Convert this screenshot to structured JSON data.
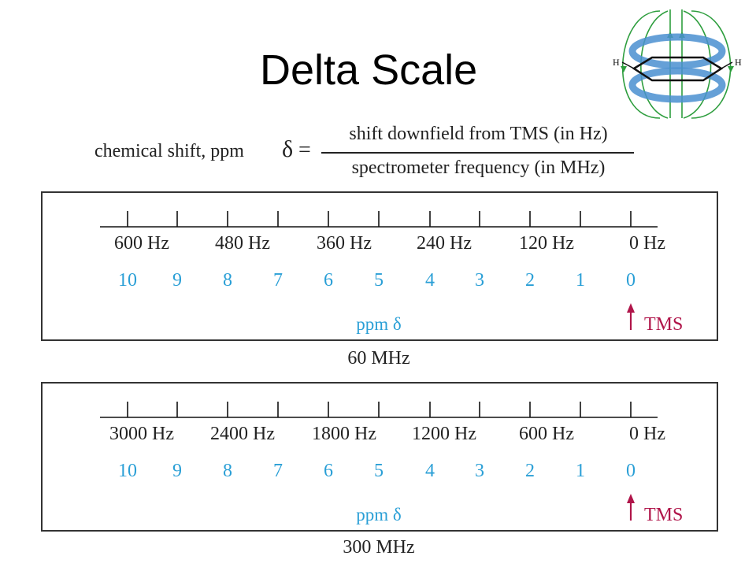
{
  "title": "Delta Scale",
  "formula": {
    "lhs_label": "chemical shift, ppm",
    "delta_symbol": "δ",
    "equals": "=",
    "numerator": "shift downfield from TMS (in Hz)",
    "denominator": "spectrometer frequency (in MHz)"
  },
  "panels": [
    {
      "frequency_label": "60 MHz",
      "hz_labels": [
        "600 Hz",
        "480 Hz",
        "360 Hz",
        "240 Hz",
        "120 Hz",
        "0 Hz"
      ],
      "ppm_labels": [
        "10",
        "9",
        "8",
        "7",
        "6",
        "5",
        "4",
        "3",
        "2",
        "1",
        "0"
      ],
      "ppm_axis_label": "ppm δ",
      "reference_label": "TMS"
    },
    {
      "frequency_label": "300 MHz",
      "hz_labels": [
        "3000 Hz",
        "2400 Hz",
        "1800 Hz",
        "1200 Hz",
        "600 Hz",
        "0 Hz"
      ],
      "ppm_labels": [
        "10",
        "9",
        "8",
        "7",
        "6",
        "5",
        "4",
        "3",
        "2",
        "1",
        "0"
      ],
      "ppm_axis_label": "ppm δ",
      "reference_label": "TMS"
    }
  ],
  "benzene_icon": {
    "atom_labels": [
      "H",
      "H"
    ]
  },
  "colors": {
    "ppm_text": "#2a9fd6",
    "tms_text": "#b0154a",
    "ring_current": "#4a8fd0",
    "field_lines": "#2e9e3e",
    "text": "#222222"
  }
}
